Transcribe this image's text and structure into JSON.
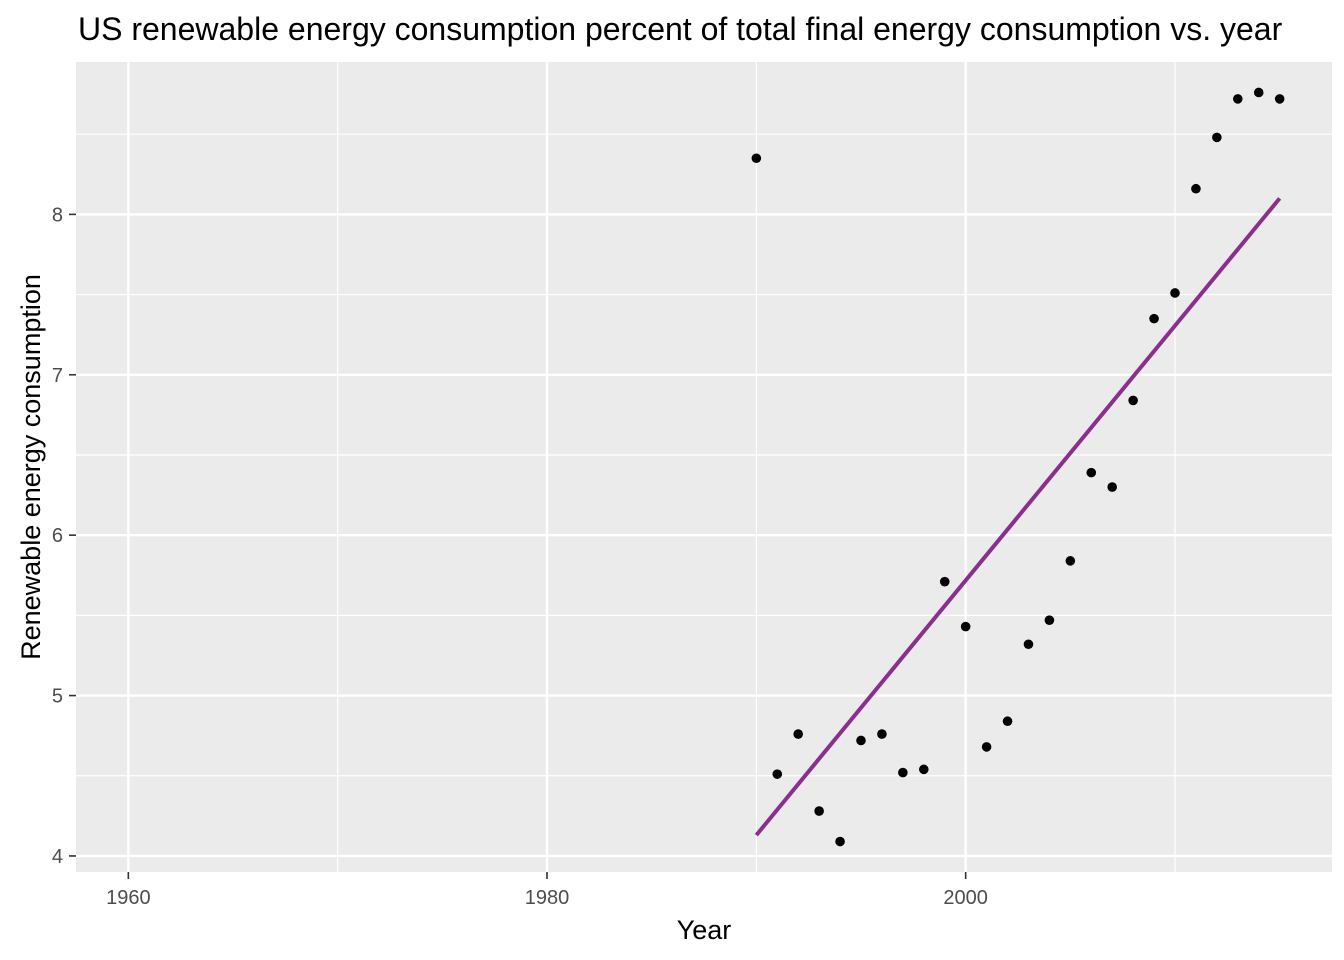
{
  "chart_data": {
    "type": "scatter",
    "title": "US renewable energy consumption percent of total final energy consumption vs. year",
    "xlabel": "Year",
    "ylabel": "Renewable energy consumption",
    "xlim": [
      1957.5,
      2017.5
    ],
    "ylim": [
      3.9,
      8.95
    ],
    "x_ticks": [
      1960,
      1980,
      2000
    ],
    "y_ticks": [
      4,
      5,
      6,
      7,
      8
    ],
    "grid": true,
    "legend": "none",
    "colors": {
      "panel_background": "#ebebeb",
      "grid_major": "#ffffff",
      "points": "#000000",
      "trend_line": "#8b2f8f"
    },
    "points": {
      "x": [
        1990,
        1991,
        1992,
        1993,
        1994,
        1995,
        1996,
        1997,
        1998,
        1999,
        2000,
        2001,
        2002,
        2003,
        2004,
        2005,
        2006,
        2007,
        2008,
        2009,
        2010,
        2011,
        2012,
        2013,
        2014,
        2015
      ],
      "y": [
        8.35,
        4.51,
        4.76,
        4.28,
        4.09,
        4.72,
        4.76,
        4.52,
        4.54,
        5.71,
        5.43,
        4.68,
        4.84,
        5.32,
        5.47,
        5.84,
        6.39,
        6.3,
        6.84,
        7.35,
        7.51,
        8.16,
        8.48,
        8.72,
        8.76,
        8.72
      ]
    },
    "trend_line": {
      "x": [
        1990,
        2015
      ],
      "y": [
        4.13,
        8.1
      ]
    }
  }
}
